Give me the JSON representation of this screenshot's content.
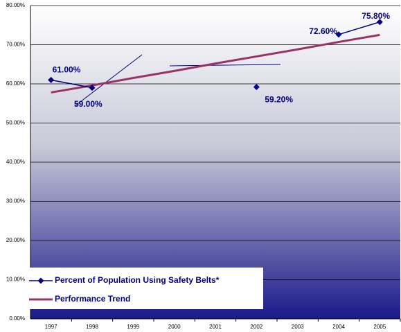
{
  "chart_data": {
    "type": "line",
    "categories": [
      "1997",
      "1998",
      "1999",
      "2000",
      "2001",
      "2002",
      "2003",
      "2004",
      "2005"
    ],
    "series": [
      {
        "name": "Percent of Population Using Safety Belts*",
        "color": "#000080",
        "values": [
          61.0,
          59.0,
          null,
          null,
          null,
          59.2,
          null,
          72.6,
          75.8
        ],
        "value_labels": [
          "61.00%",
          "59.00%",
          null,
          null,
          null,
          "59.20%",
          null,
          "72.60%",
          "75.80%"
        ]
      },
      {
        "name": "Performance Trend",
        "color": "#993366",
        "values": [
          57.8,
          59.6,
          61.5,
          63.3,
          65.2,
          67.0,
          68.8,
          70.7,
          72.5
        ]
      }
    ],
    "ylim": [
      0,
      80
    ],
    "yticks": [
      {
        "value": 0,
        "label": "0.00%"
      },
      {
        "value": 10,
        "label": "10.00%"
      },
      {
        "value": 20,
        "label": "20.00%"
      },
      {
        "value": 30,
        "label": "30.00%"
      },
      {
        "value": 40,
        "label": "40.00%"
      },
      {
        "value": 50,
        "label": "50.00%"
      },
      {
        "value": 60,
        "label": "60.00%"
      },
      {
        "value": 70,
        "label": "70.00%"
      },
      {
        "value": 80,
        "label": "80.00%"
      }
    ],
    "grid": true,
    "legend": "lower left"
  }
}
